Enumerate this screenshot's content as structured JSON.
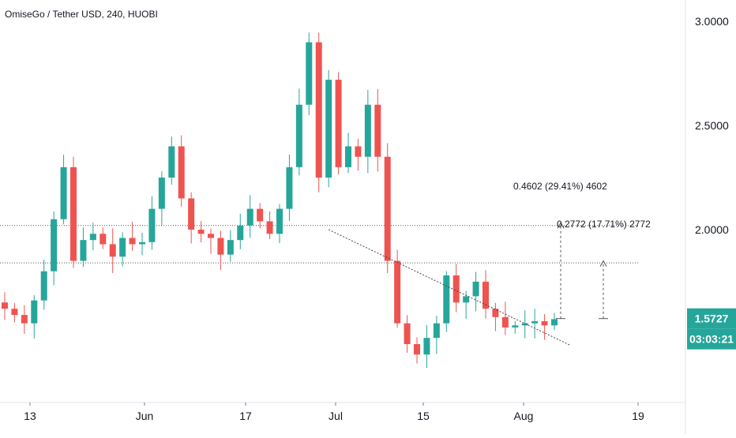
{
  "colors": {
    "up": "#26a69a",
    "down": "#ef5350",
    "accent": "#26a69a",
    "text": "#131722",
    "axis": "#787b86"
  },
  "chart_data": {
    "type": "candlestick",
    "title": "OmiseGo / Tether USD, 240, HUOBI",
    "ylim": [
      1.2,
      3.05
    ],
    "y_ticks": [
      {
        "label": "3.0000",
        "value": 3.0
      },
      {
        "label": "2.5000",
        "value": 2.5
      },
      {
        "label": "2.0000",
        "value": 2.0
      }
    ],
    "x_ticks": [
      "13",
      "Jun",
      "17",
      "Jul",
      "15",
      "Aug",
      "19"
    ],
    "last_price": "1.5727",
    "countdown": "03:03:21",
    "levels": [
      2.02,
      1.84
    ],
    "trendline": {
      "from": [
        33,
        2.0
      ],
      "to": [
        63,
        1.5
      ]
    },
    "measurements": [
      {
        "label": "0.4602 (29.41%) 4602",
        "from": 1.5727,
        "to": 2.0329
      },
      {
        "label": "0.2772 (17.71%) 2772",
        "from": 1.5727,
        "to": 1.8499
      }
    ],
    "series_close": [
      1.62,
      1.59,
      1.55,
      1.66,
      1.8,
      2.05,
      2.3,
      1.85,
      1.95,
      1.98,
      1.93,
      1.87,
      1.96,
      1.93,
      1.94,
      2.1,
      2.25,
      2.4,
      2.15,
      2.0,
      1.98,
      1.96,
      1.88,
      1.95,
      2.02,
      2.1,
      2.04,
      1.98,
      2.1,
      2.3,
      2.6,
      2.9,
      2.25,
      2.72,
      2.3,
      2.4,
      2.35,
      2.6,
      2.35,
      1.85,
      1.55,
      1.45,
      1.4,
      1.48,
      1.55,
      1.78,
      1.65,
      1.68,
      1.75,
      1.62,
      1.58,
      1.53,
      1.54,
      1.55,
      1.56,
      1.54,
      1.57
    ]
  }
}
